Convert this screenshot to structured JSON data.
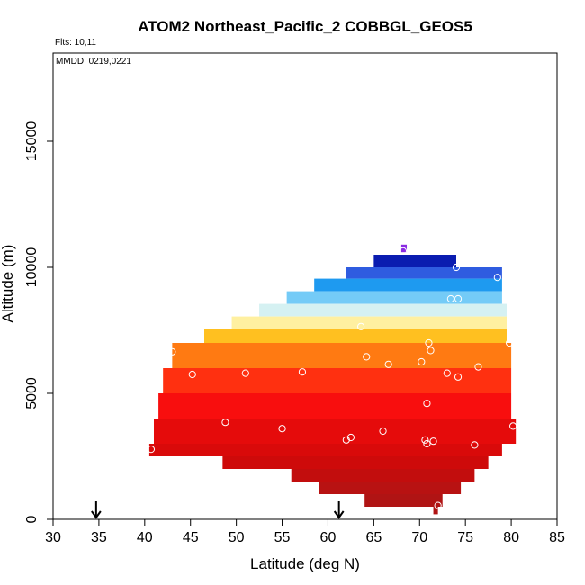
{
  "chart_data": {
    "type": "heatmap",
    "title": "ATOM2 Northeast_Pacific_2 COBBGL_GEOS5",
    "notes": [
      "Flts: 10,11",
      "MMDD: 0219,0221"
    ],
    "xlabel": "Latitude (deg N)",
    "ylabel": "Altitude (m)",
    "xlim": [
      30,
      85
    ],
    "ylim": [
      0,
      18500
    ],
    "x_ticks": [
      30,
      35,
      40,
      45,
      50,
      55,
      60,
      65,
      70,
      75,
      80,
      85
    ],
    "y_ticks": [
      0,
      5000,
      10000,
      15000
    ],
    "arrow_latitudes": [
      34.7,
      61.2
    ],
    "bands": [
      {
        "y0": 10600,
        "y1": 10900,
        "x0": 68.0,
        "x1": 68.6,
        "color": "#8a2be2"
      },
      {
        "y0": 10000,
        "y1": 10500,
        "x0": 65.0,
        "x1": 74.0,
        "color": "#0a1cb0"
      },
      {
        "y0": 9550,
        "y1": 10000,
        "x0": 62.0,
        "x1": 79.0,
        "color": "#2f5ce0"
      },
      {
        "y0": 9050,
        "y1": 9550,
        "x0": 58.5,
        "x1": 79.0,
        "color": "#1e9af0"
      },
      {
        "y0": 8550,
        "y1": 9050,
        "x0": 55.5,
        "x1": 79.0,
        "color": "#74cbf7"
      },
      {
        "y0": 8050,
        "y1": 8550,
        "x0": 52.5,
        "x1": 79.5,
        "color": "#d5f1f2"
      },
      {
        "y0": 7550,
        "y1": 8050,
        "x0": 49.5,
        "x1": 79.5,
        "color": "#fff0a0"
      },
      {
        "y0": 7000,
        "y1": 7550,
        "x0": 46.5,
        "x1": 79.5,
        "color": "#ffc020"
      },
      {
        "y0": 6000,
        "y1": 7000,
        "x0": 43.0,
        "x1": 80.0,
        "color": "#ff7a12"
      },
      {
        "y0": 5000,
        "y1": 6000,
        "x0": 42.0,
        "x1": 80.0,
        "color": "#ff3010"
      },
      {
        "y0": 4000,
        "y1": 5000,
        "x0": 41.5,
        "x1": 80.0,
        "color": "#f80e0e"
      },
      {
        "y0": 3000,
        "y1": 4000,
        "x0": 41.0,
        "x1": 80.5,
        "color": "#e50b0b"
      },
      {
        "y0": 2500,
        "y1": 3000,
        "x0": 40.5,
        "x1": 79.0,
        "color": "#d90a0a"
      },
      {
        "y0": 2000,
        "y1": 2500,
        "x0": 48.5,
        "x1": 77.5,
        "color": "#ce0a0a"
      },
      {
        "y0": 1500,
        "y1": 2000,
        "x0": 56.0,
        "x1": 76.0,
        "color": "#c20d0d"
      },
      {
        "y0": 1000,
        "y1": 1500,
        "x0": 59.0,
        "x1": 74.5,
        "color": "#b81212"
      },
      {
        "y0": 500,
        "y1": 1000,
        "x0": 64.0,
        "x1": 72.5,
        "color": "#b01414"
      },
      {
        "y0": 200,
        "y1": 500,
        "x0": 71.5,
        "x1": 72.0,
        "color": "#b01414"
      }
    ],
    "points": [
      {
        "x": 68.2,
        "y": 10650
      },
      {
        "x": 74.0,
        "y": 10000
      },
      {
        "x": 78.5,
        "y": 9600
      },
      {
        "x": 73.4,
        "y": 8750
      },
      {
        "x": 74.2,
        "y": 8750
      },
      {
        "x": 63.6,
        "y": 7650
      },
      {
        "x": 71.0,
        "y": 7000
      },
      {
        "x": 79.8,
        "y": 7000
      },
      {
        "x": 43.0,
        "y": 6650
      },
      {
        "x": 71.2,
        "y": 6700
      },
      {
        "x": 64.2,
        "y": 6450
      },
      {
        "x": 66.6,
        "y": 6150
      },
      {
        "x": 70.2,
        "y": 6250
      },
      {
        "x": 76.4,
        "y": 6050
      },
      {
        "x": 45.2,
        "y": 5750
      },
      {
        "x": 51.0,
        "y": 5800
      },
      {
        "x": 57.2,
        "y": 5850
      },
      {
        "x": 73.0,
        "y": 5800
      },
      {
        "x": 74.2,
        "y": 5650
      },
      {
        "x": 70.8,
        "y": 4600
      },
      {
        "x": 48.8,
        "y": 3850
      },
      {
        "x": 55.0,
        "y": 3600
      },
      {
        "x": 66.0,
        "y": 3500
      },
      {
        "x": 80.2,
        "y": 3700
      },
      {
        "x": 62.0,
        "y": 3150
      },
      {
        "x": 62.5,
        "y": 3250
      },
      {
        "x": 70.6,
        "y": 3150
      },
      {
        "x": 71.5,
        "y": 3100
      },
      {
        "x": 70.8,
        "y": 3000
      },
      {
        "x": 76.0,
        "y": 2950
      },
      {
        "x": 40.7,
        "y": 2780
      },
      {
        "x": 72.0,
        "y": 550
      }
    ]
  }
}
